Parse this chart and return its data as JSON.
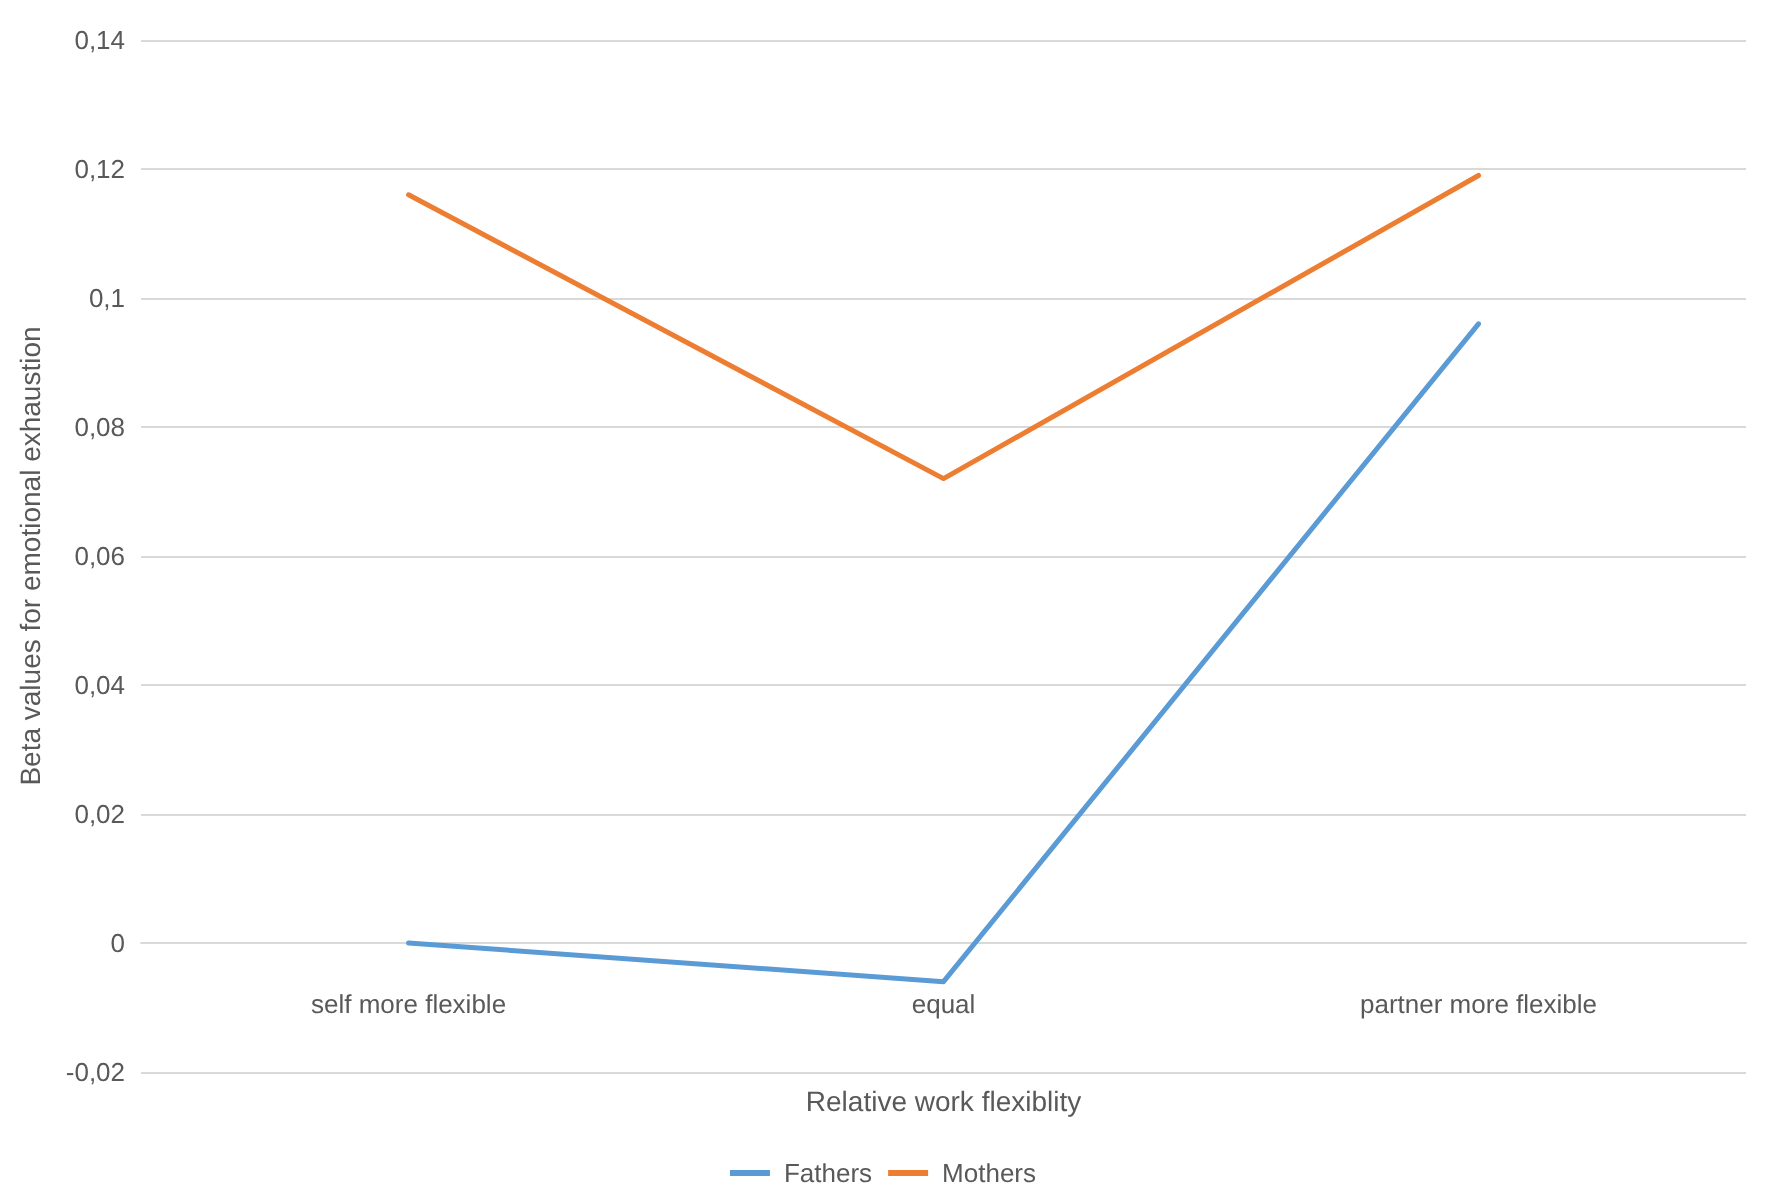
{
  "chart_data": {
    "type": "line",
    "xlabel": "Relative work flexiblity",
    "ylabel": "Beta values for emotional exhaustion",
    "categories": [
      "self more flexible",
      "equal",
      "partner more flexible"
    ],
    "series": [
      {
        "name": "Fathers",
        "color": "#5b9bd5",
        "values": [
          0,
          -0.006,
          0.096
        ]
      },
      {
        "name": "Mothers",
        "color": "#ed7d31",
        "values": [
          0.116,
          0.072,
          0.119
        ]
      }
    ],
    "ylim": [
      -0.02,
      0.14
    ],
    "yticks": [
      {
        "value": -0.02,
        "label": "-0,02"
      },
      0,
      {
        "value": 0.02,
        "label": "0,02"
      },
      {
        "value": 0.04,
        "label": "0,04"
      },
      {
        "value": 0.06,
        "label": "0,06"
      },
      {
        "value": 0.08,
        "label": "0,08"
      },
      {
        "value": 0.1,
        "label": "0,1"
      },
      {
        "value": 0.12,
        "label": "0,12"
      },
      {
        "value": 0.14,
        "label": "0,14"
      }
    ],
    "grid": "y",
    "legend": "bottom",
    "marker": "none",
    "line_style": "solid"
  }
}
